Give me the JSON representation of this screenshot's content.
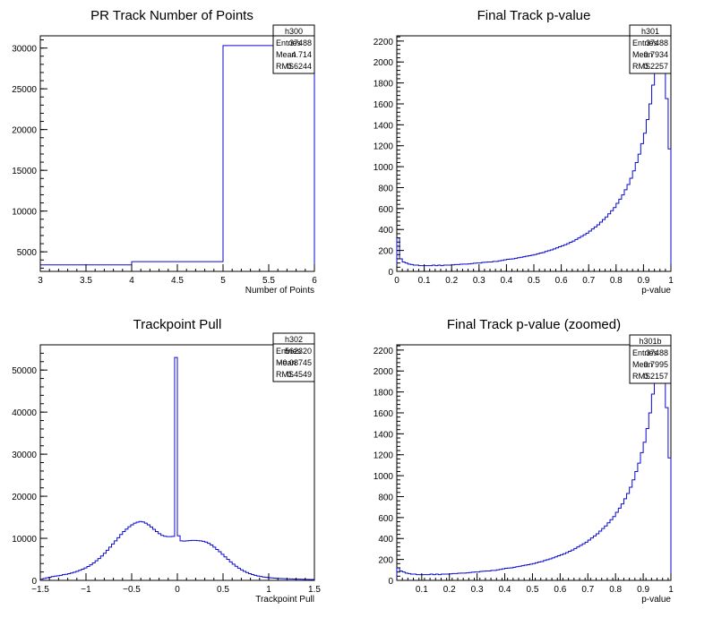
{
  "chart_data": [
    {
      "type": "histogram",
      "title": "PR Track Number of Points",
      "xlabel": "Number of Points",
      "ylabel": "",
      "xlim": [
        3,
        6
      ],
      "ylim": [
        2600,
        31500
      ],
      "xticks": [
        3,
        3.5,
        4,
        4.5,
        5,
        5.5,
        6
      ],
      "xtick_labels": [
        "3",
        "3.5",
        "4",
        "4.5",
        "5",
        "5.5",
        "6"
      ],
      "yticks": [
        5000,
        10000,
        15000,
        20000,
        25000,
        30000
      ],
      "ytick_labels": [
        "5000",
        "10000",
        "15000",
        "20000",
        "25000",
        "30000"
      ],
      "bin_edges": [
        3,
        4,
        5,
        6
      ],
      "values": [
        3400,
        3800,
        30300
      ],
      "stats": {
        "name": "h300",
        "rows": [
          {
            "label": "Entries",
            "value": "37488"
          },
          {
            "label": "Mean",
            "value": "4.714"
          },
          {
            "label": "RMS",
            "value": "0.6244"
          }
        ]
      }
    },
    {
      "type": "histogram",
      "title": "Final Track p-value",
      "xlabel": "p-value",
      "ylabel": "",
      "xlim": [
        0,
        1
      ],
      "ylim": [
        0,
        2250
      ],
      "xticks": [
        0,
        0.1,
        0.2,
        0.3,
        0.4,
        0.5,
        0.6,
        0.7,
        0.8,
        0.9,
        1
      ],
      "xtick_labels": [
        "0",
        "0.1",
        "0.2",
        "0.3",
        "0.4",
        "0.5",
        "0.6",
        "0.7",
        "0.8",
        "0.9",
        "1"
      ],
      "yticks": [
        0,
        200,
        400,
        600,
        800,
        1000,
        1200,
        1400,
        1600,
        1800,
        2000,
        2200
      ],
      "ytick_labels": [
        "0",
        "200",
        "400",
        "600",
        "800",
        "1000",
        "1200",
        "1400",
        "1600",
        "1800",
        "2000",
        "2200"
      ],
      "bin_edges_range": [
        0,
        1
      ],
      "values": [
        320,
        120,
        90,
        80,
        70,
        65,
        60,
        60,
        55,
        55,
        55,
        55,
        55,
        60,
        55,
        60,
        55,
        60,
        60,
        60,
        62,
        65,
        65,
        68,
        70,
        70,
        72,
        75,
        78,
        80,
        80,
        85,
        88,
        90,
        90,
        95,
        95,
        100,
        105,
        110,
        115,
        118,
        120,
        125,
        130,
        135,
        140,
        145,
        150,
        155,
        160,
        168,
        175,
        180,
        190,
        198,
        205,
        215,
        225,
        235,
        245,
        255,
        265,
        278,
        290,
        305,
        320,
        335,
        350,
        365,
        385,
        405,
        425,
        445,
        470,
        495,
        520,
        550,
        580,
        610,
        650,
        690,
        730,
        780,
        830,
        890,
        960,
        1040,
        1120,
        1220,
        1320,
        1450,
        1600,
        1780,
        1960,
        2150,
        2300,
        2300,
        1650,
        1170
      ],
      "stats": {
        "name": "h301",
        "rows": [
          {
            "label": "Entries",
            "value": "37488"
          },
          {
            "label": "Mean",
            "value": "0.7934"
          },
          {
            "label": "RMS",
            "value": "0.2257"
          }
        ]
      }
    },
    {
      "type": "histogram",
      "title": "Trackpoint Pull",
      "xlabel": "Trackpoint Pull",
      "ylabel": "",
      "xlim": [
        -1.5,
        1.5
      ],
      "ylim": [
        0,
        56000
      ],
      "xticks": [
        -1.5,
        -1,
        -0.5,
        0,
        0.5,
        1,
        1.5
      ],
      "xtick_labels": [
        "−1.5",
        "−1",
        "−0.5",
        "0",
        "0.5",
        "1",
        "1.5"
      ],
      "yticks": [
        0,
        10000,
        20000,
        30000,
        40000,
        50000
      ],
      "ytick_labels": [
        "0",
        "10000",
        "20000",
        "30000",
        "40000",
        "50000"
      ],
      "bin_edges_range": [
        -1.5,
        1.5
      ],
      "values": [
        300,
        450,
        600,
        750,
        900,
        1000,
        1100,
        1200,
        1350,
        1450,
        1600,
        1750,
        1950,
        2150,
        2400,
        2650,
        2950,
        3300,
        3700,
        4150,
        4650,
        5200,
        5800,
        6450,
        7150,
        7900,
        8650,
        9400,
        10150,
        10900,
        11600,
        12200,
        12750,
        13200,
        13600,
        13850,
        14000,
        13900,
        13600,
        13200,
        12700,
        12150,
        11600,
        11100,
        10700,
        10500,
        10400,
        10400,
        10450,
        53000,
        10600,
        9400,
        9350,
        9400,
        9450,
        9500,
        9500,
        9450,
        9400,
        9300,
        9100,
        8800,
        8400,
        7900,
        7350,
        6800,
        6200,
        5600,
        5000,
        4400,
        3850,
        3350,
        2900,
        2500,
        2150,
        1850,
        1600,
        1380,
        1200,
        1050,
        920,
        810,
        720,
        640,
        580,
        530,
        490,
        450,
        420,
        390,
        360,
        340,
        320,
        300,
        280,
        260,
        240,
        230,
        220,
        200
      ],
      "stats": {
        "name": "h302",
        "rows": [
          {
            "label": "Entries",
            "value": "562320"
          },
          {
            "label": "Mean",
            "value": "−0.08745"
          },
          {
            "label": "RMS",
            "value": "0.4549"
          }
        ]
      }
    },
    {
      "type": "histogram",
      "title": "Final Track p-value (zoomed)",
      "xlabel": "p-value",
      "ylabel": "",
      "xlim": [
        0.01,
        1
      ],
      "ylim": [
        0,
        2250
      ],
      "xticks": [
        0.1,
        0.2,
        0.3,
        0.4,
        0.5,
        0.6,
        0.7,
        0.8,
        0.9,
        1
      ],
      "xtick_labels": [
        "0.1",
        "0.2",
        "0.3",
        "0.4",
        "0.5",
        "0.6",
        "0.7",
        "0.8",
        "0.9",
        "1"
      ],
      "yticks": [
        0,
        200,
        400,
        600,
        800,
        1000,
        1200,
        1400,
        1600,
        1800,
        2000,
        2200
      ],
      "ytick_labels": [
        "0",
        "200",
        "400",
        "600",
        "800",
        "1000",
        "1200",
        "1400",
        "1600",
        "1800",
        "2000",
        "2200"
      ],
      "bin_edges_range": [
        0.01,
        1
      ],
      "values": [
        120,
        90,
        80,
        70,
        65,
        60,
        60,
        55,
        55,
        55,
        55,
        55,
        60,
        55,
        60,
        55,
        60,
        60,
        60,
        62,
        65,
        65,
        68,
        70,
        70,
        72,
        75,
        78,
        80,
        80,
        85,
        88,
        90,
        90,
        95,
        95,
        100,
        105,
        110,
        115,
        118,
        120,
        125,
        130,
        135,
        140,
        145,
        150,
        155,
        160,
        168,
        175,
        180,
        190,
        198,
        205,
        215,
        225,
        235,
        245,
        255,
        265,
        278,
        290,
        305,
        320,
        335,
        350,
        365,
        385,
        405,
        425,
        445,
        470,
        495,
        520,
        550,
        580,
        610,
        650,
        690,
        730,
        780,
        830,
        890,
        960,
        1040,
        1120,
        1220,
        1320,
        1450,
        1600,
        1780,
        1960,
        2150,
        2300,
        2300,
        1650,
        1170
      ],
      "stats": {
        "name": "h301b",
        "rows": [
          {
            "label": "Entries",
            "value": "37488"
          },
          {
            "label": "Mean",
            "value": "0.7995"
          },
          {
            "label": "RMS",
            "value": "0.2157"
          }
        ]
      }
    }
  ]
}
